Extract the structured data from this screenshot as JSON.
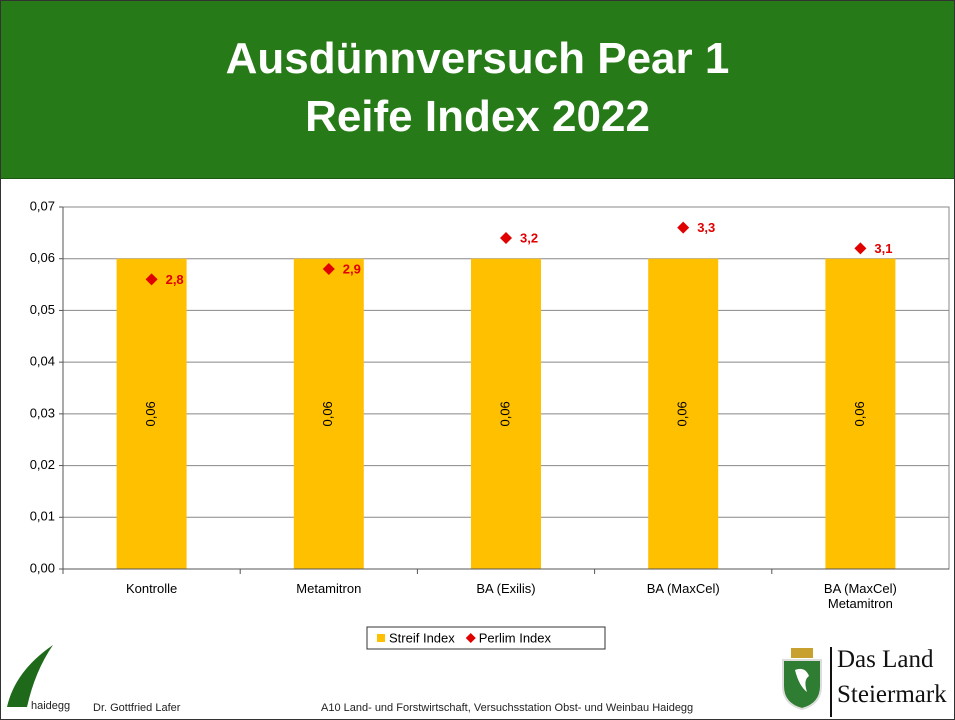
{
  "chart_data": {
    "type": "bar",
    "title": "Ausdünnversuch Pear 1",
    "subtitle": "Reife Index 2022",
    "categories": [
      "Kontrolle",
      "Metamitron",
      "BA (Exilis)",
      "BA (MaxCel)",
      "BA (MaxCel) Metamitron"
    ],
    "series": [
      {
        "name": "Streif Index",
        "type": "bar",
        "color": "#FFC000",
        "values": [
          0.06,
          0.06,
          0.06,
          0.06,
          0.06
        ],
        "value_labels": [
          "0,06",
          "0,06",
          "0,06",
          "0,06",
          "0,06"
        ]
      },
      {
        "name": "Perlim Index",
        "type": "scatter",
        "axis": "y2",
        "color": "#E00000",
        "values": [
          2.8,
          2.9,
          3.2,
          3.3,
          3.1
        ],
        "value_labels": [
          "2,8",
          "2,9",
          "3,2",
          "3,3",
          "3,1"
        ]
      }
    ],
    "ylim": [
      0,
      0.07
    ],
    "yticks": [
      {
        "value": 0,
        "label": "0,00"
      },
      {
        "value": 0.01,
        "label": "0,01"
      },
      {
        "value": 0.02,
        "label": "0,02"
      },
      {
        "value": 0.03,
        "label": "0,03"
      },
      {
        "value": 0.04,
        "label": "0,04"
      },
      {
        "value": 0.05,
        "label": "0,05"
      },
      {
        "value": 0.06,
        "label": "0,06"
      },
      {
        "value": 0.07,
        "label": "0,07"
      }
    ],
    "y2lim": [
      0,
      3.5
    ],
    "grid": true,
    "legend": "bottom"
  },
  "footer": {
    "logo_text": "haidegg",
    "author": "Dr. Gottfried Lafer",
    "institution": "A10 Land- und Forstwirtschaft, Versuchsstation Obst- und Weinbau Haidegg",
    "brand_line1": "Das Land",
    "brand_line2": "Steiermark"
  }
}
